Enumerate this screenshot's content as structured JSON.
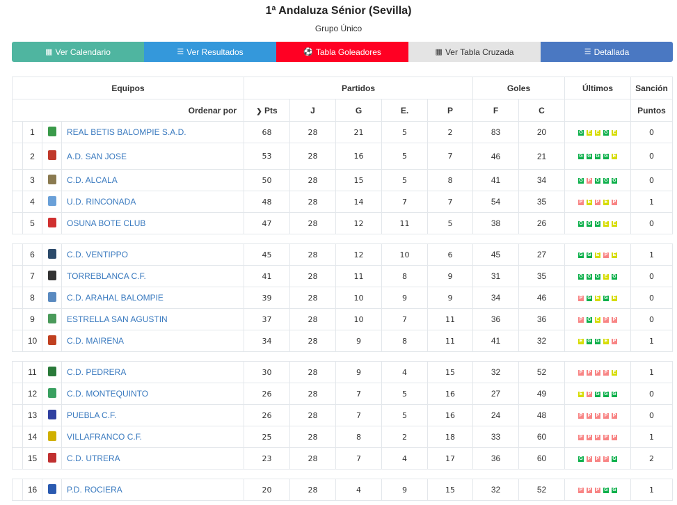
{
  "header": {
    "title": "1ª Andaluza Sénior (Sevilla)",
    "subtitle": "Grupo Único"
  },
  "buttons": [
    {
      "label": "Ver Calendario",
      "icon": "calendar-icon",
      "color": "#4fb5a0",
      "text": "#ffffff"
    },
    {
      "label": "Ver Resultados",
      "icon": "list-icon",
      "color": "#3498db",
      "text": "#ffffff"
    },
    {
      "label": "Tabla Goleadores",
      "icon": "soccer-ball-icon",
      "color": "#ff0023",
      "text": "#ffffff"
    },
    {
      "label": "Ver Tabla Cruzada",
      "icon": "table-icon",
      "color": "#e4e4e4",
      "text": "#333333"
    },
    {
      "label": "Detallada",
      "icon": "detail-list-icon",
      "color": "#4a78c2",
      "text": "#ffffff"
    }
  ],
  "table": {
    "groups": {
      "equipos": "Equipos",
      "partidos": "Partidos",
      "goles": "Goles",
      "ultimos": "Últimos",
      "sancion": "Sanción"
    },
    "cols": {
      "order_by": "Ordenar por",
      "pts": "Pts",
      "j": "J",
      "g": "G",
      "e": "E.",
      "p": "P",
      "f": "F",
      "c": "C",
      "puntos": "Puntos"
    },
    "result_colors": {
      "G": "#0db04b",
      "E": "#d6dc00",
      "P": "#f88585"
    },
    "rows": [
      {
        "pos": "1",
        "name": "REAL BETIS BALOMPIE S.A.D.",
        "pts": "68",
        "j": "28",
        "g": "21",
        "e": "5",
        "p": "2",
        "f": "83",
        "c": "20",
        "last": "GEEGE",
        "sanc": "0",
        "logo": "#3a9a4a"
      },
      {
        "pos": "2",
        "name": "A.D. SAN JOSE",
        "pts": "53",
        "j": "28",
        "g": "16",
        "e": "5",
        "p": "7",
        "f": "46",
        "c": "21",
        "last": "GGGGE",
        "sanc": "0",
        "logo": "#c0392b"
      },
      {
        "pos": "3",
        "name": "C.D. ALCALA",
        "pts": "50",
        "j": "28",
        "g": "15",
        "e": "5",
        "p": "8",
        "f": "41",
        "c": "34",
        "last": "GPGGG",
        "sanc": "0",
        "logo": "#8a7a50"
      },
      {
        "pos": "4",
        "name": "U.D. RINCONADA",
        "pts": "48",
        "j": "28",
        "g": "14",
        "e": "7",
        "p": "7",
        "f": "54",
        "c": "35",
        "last": "PEPEP",
        "sanc": "1",
        "logo": "#6aa0d8"
      },
      {
        "pos": "5",
        "name": "OSUNA BOTE CLUB",
        "pts": "47",
        "j": "28",
        "g": "12",
        "e": "11",
        "p": "5",
        "f": "38",
        "c": "26",
        "last": "GGGEE",
        "sanc": "0",
        "logo": "#d03030"
      },
      {
        "pos": "6",
        "name": "C.D. VENTIPPO",
        "pts": "45",
        "j": "28",
        "g": "12",
        "e": "10",
        "p": "6",
        "f": "45",
        "c": "27",
        "last": "GGEPE",
        "sanc": "1",
        "logo": "#2c4a6a"
      },
      {
        "pos": "7",
        "name": "TORREBLANCA C.F.",
        "pts": "41",
        "j": "28",
        "g": "11",
        "e": "8",
        "p": "9",
        "f": "31",
        "c": "35",
        "last": "GGGEG",
        "sanc": "0",
        "logo": "#333333"
      },
      {
        "pos": "8",
        "name": "C.D. ARAHAL BALOMPIE",
        "pts": "39",
        "j": "28",
        "g": "10",
        "e": "9",
        "p": "9",
        "f": "34",
        "c": "46",
        "last": "PGEGE",
        "sanc": "0",
        "logo": "#5a8ac0"
      },
      {
        "pos": "9",
        "name": "ESTRELLA SAN AGUSTIN",
        "pts": "37",
        "j": "28",
        "g": "10",
        "e": "7",
        "p": "11",
        "f": "36",
        "c": "36",
        "last": "PGEPP",
        "sanc": "0",
        "logo": "#4a9a5a"
      },
      {
        "pos": "10",
        "name": "C.D. MAIRENA",
        "pts": "34",
        "j": "28",
        "g": "9",
        "e": "8",
        "p": "11",
        "f": "41",
        "c": "32",
        "last": "EGGEP",
        "sanc": "1",
        "logo": "#c04020"
      },
      {
        "pos": "11",
        "name": "C.D. PEDRERA",
        "pts": "30",
        "j": "28",
        "g": "9",
        "e": "4",
        "p": "15",
        "f": "32",
        "c": "52",
        "last": "PPPPE",
        "sanc": "1",
        "logo": "#2a7a3a"
      },
      {
        "pos": "12",
        "name": "C.D. MONTEQUINTO",
        "pts": "26",
        "j": "28",
        "g": "7",
        "e": "5",
        "p": "16",
        "f": "27",
        "c": "49",
        "last": "EPGGG",
        "sanc": "0",
        "logo": "#3aa060"
      },
      {
        "pos": "13",
        "name": "PUEBLA C.F.",
        "pts": "26",
        "j": "28",
        "g": "7",
        "e": "5",
        "p": "16",
        "f": "24",
        "c": "48",
        "last": "PPPPP",
        "sanc": "0",
        "logo": "#3040a0"
      },
      {
        "pos": "14",
        "name": "VILLAFRANCO C.F.",
        "pts": "25",
        "j": "28",
        "g": "8",
        "e": "2",
        "p": "18",
        "f": "33",
        "c": "60",
        "last": "PPPPP",
        "sanc": "1",
        "logo": "#d0b000"
      },
      {
        "pos": "15",
        "name": "C.D. UTRERA",
        "pts": "23",
        "j": "28",
        "g": "7",
        "e": "4",
        "p": "17",
        "f": "36",
        "c": "60",
        "last": "GPPPG",
        "sanc": "2",
        "logo": "#c03030"
      },
      {
        "pos": "16",
        "name": "P.D. ROCIERA",
        "pts": "20",
        "j": "28",
        "g": "4",
        "e": "9",
        "p": "15",
        "f": "32",
        "c": "52",
        "last": "PPPGG",
        "sanc": "1",
        "logo": "#2a5ab0"
      }
    ]
  }
}
